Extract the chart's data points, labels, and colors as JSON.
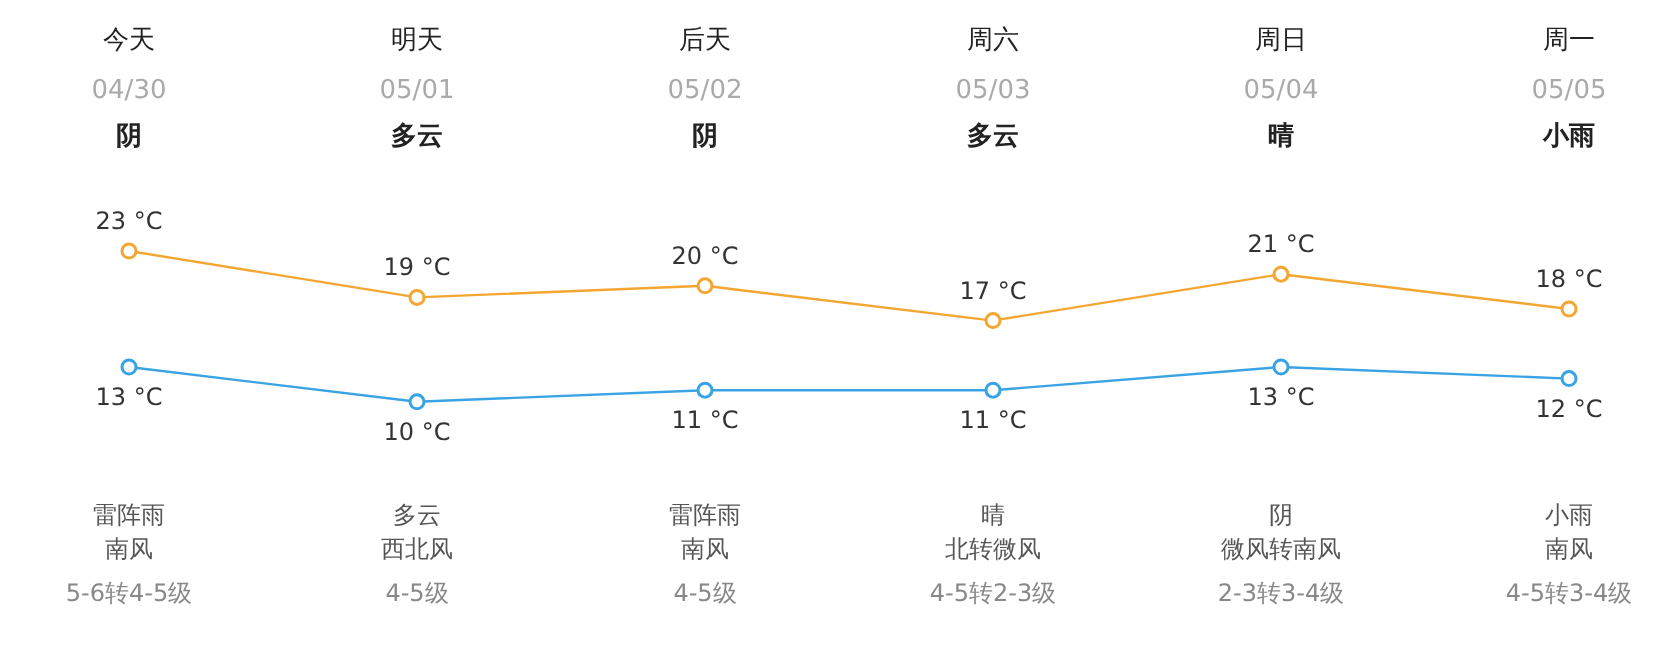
{
  "chart_data": {
    "type": "line",
    "categories": [
      "今天\n04/30\n阴",
      "明天\n05/01\n多云",
      "后天\n05/02\n阴",
      "周六\n05/03\n多云",
      "周日\n05/04\n晴",
      "周一\n05/05\n小雨"
    ],
    "series": [
      {
        "color": "#f3a631",
        "values": [
          23,
          19,
          20,
          17,
          21,
          18
        ],
        "value_labels": [
          "23 °C",
          "19 °C",
          "20 °C",
          "17 °C",
          "21 °C",
          "18 °C"
        ]
      },
      {
        "color": "#3aa3e3",
        "values": [
          13,
          10,
          11,
          11,
          13,
          12
        ],
        "value_labels": [
          "13 °C",
          "10 °C",
          "11 °C",
          "11 °C",
          "13 °C",
          "12 °C"
        ]
      }
    ],
    "annotations": [
      "雷阵雨",
      "南风",
      "5-6转4-5级",
      "多云",
      "西北风",
      "4-5级",
      "雷阵雨",
      "南风",
      "4-5级",
      "晴",
      "北转微风",
      "4-5转2-3级",
      "阴",
      "微风转南风",
      "2-3转3-4级",
      "小雨",
      "南风",
      "4-5转3-4级"
    ],
    "marker": "circle",
    "line_style": "solid"
  }
}
